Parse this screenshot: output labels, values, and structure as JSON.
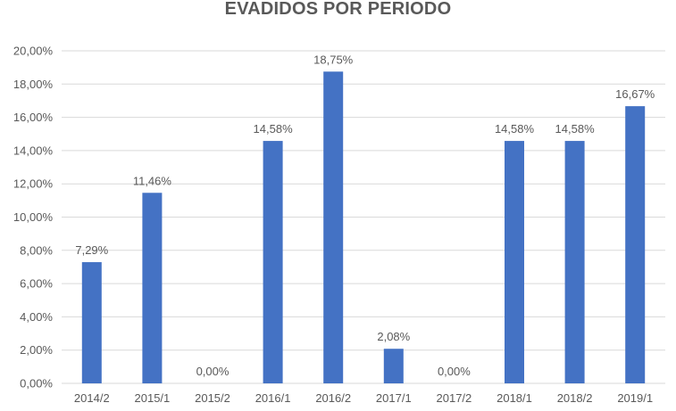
{
  "chart_data": {
    "type": "bar",
    "title": "EVADIDOS POR PERIODO",
    "xlabel": "",
    "ylabel": "",
    "categories": [
      "2014/2",
      "2015/1",
      "2015/2",
      "2016/1",
      "2016/2",
      "2017/1",
      "2017/2",
      "2018/1",
      "2018/2",
      "2019/1"
    ],
    "values": [
      7.29,
      11.46,
      0.0,
      14.58,
      18.75,
      2.08,
      0.0,
      14.58,
      14.58,
      16.67
    ],
    "data_labels": [
      "7,29%",
      "11,46%",
      "0,00%",
      "14,58%",
      "18,75%",
      "2,08%",
      "0,00%",
      "14,58%",
      "14,58%",
      "16,67%"
    ],
    "ylim": [
      0,
      20
    ],
    "yticks": [
      0,
      2,
      4,
      6,
      8,
      10,
      12,
      14,
      16,
      18,
      20
    ],
    "ytick_labels": [
      "0,00%",
      "2,00%",
      "4,00%",
      "6,00%",
      "8,00%",
      "10,00%",
      "12,00%",
      "14,00%",
      "16,00%",
      "18,00%",
      "20,00%"
    ],
    "grid": true,
    "legend": "none",
    "bar_color": "#4472C4",
    "grid_color": "#D9D9D9",
    "text_color": "#595959"
  }
}
